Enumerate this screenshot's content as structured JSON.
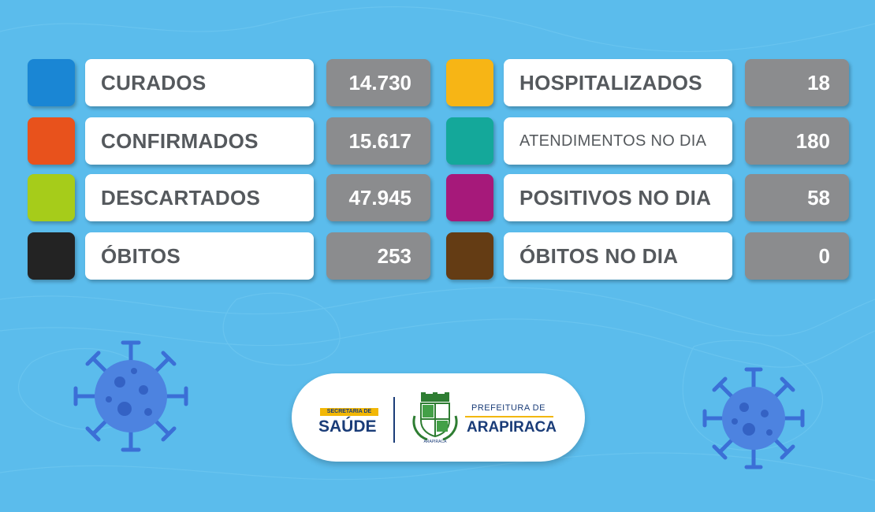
{
  "colors": {
    "background": "#5bbcec",
    "value_box": "#8b8c8e",
    "virus": "#3b6fd6"
  },
  "left_stats": [
    {
      "label": "CURADOS",
      "value": "14.730",
      "color": "#1a86d4"
    },
    {
      "label": "CONFIRMADOS",
      "value": "15.617",
      "color": "#e8521c"
    },
    {
      "label": "DESCARTADOS",
      "value": "47.945",
      "color": "#a6cc1a"
    },
    {
      "label": "ÓBITOS",
      "value": "253",
      "color": "#232323"
    }
  ],
  "right_stats": [
    {
      "label": "HOSPITALIZADOS",
      "value": "18",
      "color": "#f7b515"
    },
    {
      "label": "ATENDIMENTOS NO DIA",
      "value": "180",
      "color": "#14a89a"
    },
    {
      "label": "POSITIVOS NO DIA",
      "value": "58",
      "color": "#a6197a"
    },
    {
      "label": "ÓBITOS NO DIA",
      "value": "0",
      "color": "#643c14"
    }
  ],
  "logo": {
    "secretaria_label": "SECRETARIA DE",
    "saude_label": "SAÚDE",
    "prefeitura_label": "PREFEITURA DE",
    "city_label": "ARAPIRACA",
    "crest_label": "ARAPIRACA"
  }
}
